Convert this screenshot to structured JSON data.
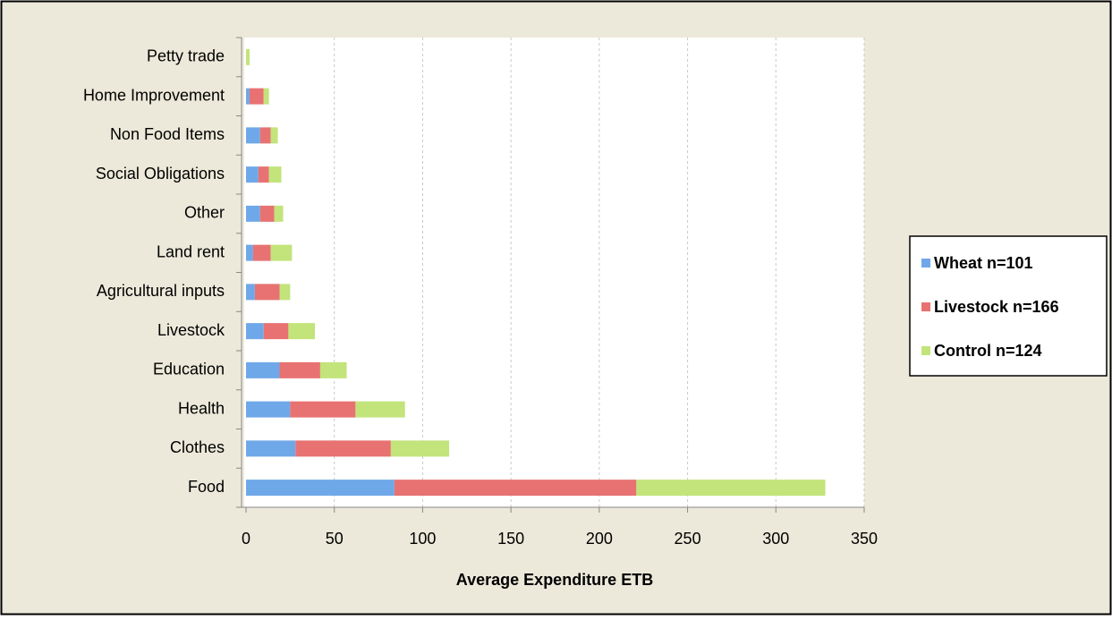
{
  "chart_data": {
    "type": "bar",
    "orientation": "horizontal",
    "stacked": true,
    "x_label": "Average Expenditure ETB",
    "categories": [
      "Food",
      "Clothes",
      "Health",
      "Education",
      "Livestock",
      "Agricultural  inputs",
      "Land rent",
      "Other",
      "Social Obligations",
      "Non Food Items",
      "Home Improvement",
      "Petty trade"
    ],
    "series": [
      {
        "name": "Wheat n=101",
        "color": "#6fa8e8",
        "values": [
          84,
          28,
          25,
          19,
          10,
          5,
          4,
          8,
          7,
          8,
          2,
          0
        ]
      },
      {
        "name": "Livestock n=166",
        "color": "#e87272",
        "values": [
          137,
          54,
          37,
          23,
          14,
          14,
          10,
          8,
          6,
          6,
          8,
          0
        ]
      },
      {
        "name": "Control n=124",
        "color": "#c2e47a",
        "values": [
          107,
          33,
          28,
          15,
          15,
          6,
          12,
          5,
          7,
          4,
          3,
          2
        ]
      }
    ],
    "xlim": [
      0,
      350
    ],
    "xticks": [
      0,
      50,
      100,
      150,
      200,
      250,
      300,
      350
    ],
    "grid": true,
    "legend": "right"
  }
}
